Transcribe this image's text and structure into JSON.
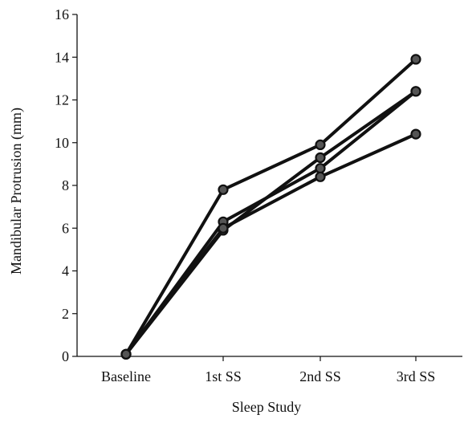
{
  "chart_data": {
    "type": "line",
    "title": "",
    "xlabel": "Sleep Study",
    "ylabel": "Mandibular Protrusion (mm)",
    "categories": [
      "Baseline",
      "1st SS",
      "2nd SS",
      "3rd SS"
    ],
    "ylim": [
      0,
      16
    ],
    "yticks": [
      0,
      2,
      4,
      6,
      8,
      10,
      12,
      14,
      16
    ],
    "grid": false,
    "legend": "none",
    "series": [
      {
        "values": [
          0.1,
          7.8,
          9.9,
          13.9
        ]
      },
      {
        "values": [
          0.1,
          5.9,
          9.3,
          12.4
        ]
      },
      {
        "values": [
          0.1,
          6.3,
          8.8,
          12.4
        ]
      },
      {
        "values": [
          0.1,
          6.0,
          8.4,
          10.4
        ]
      }
    ],
    "colors": {
      "line": "#111111",
      "marker_fill": "#555555"
    }
  }
}
